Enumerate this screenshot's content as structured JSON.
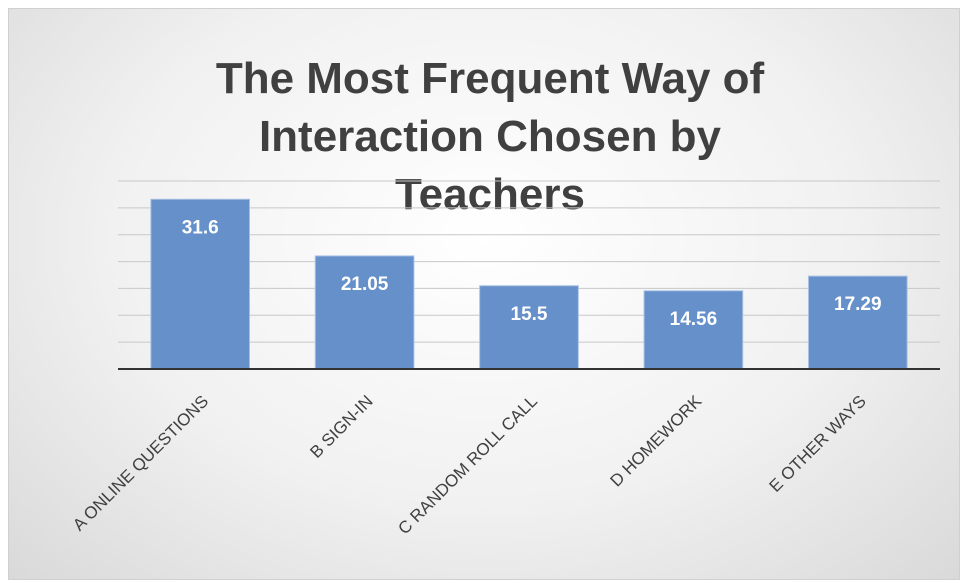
{
  "chart_data": {
    "type": "bar",
    "title": "The Most Frequent Way of Interaction Chosen by Teachers",
    "categories": [
      "A ONLINE QUESTIONS",
      "B SIGN-IN",
      "C RANDOM ROLL CALL",
      "D HOMEWORK",
      "E OTHER WAYS"
    ],
    "values": [
      31.6,
      21.05,
      15.5,
      14.56,
      17.29
    ],
    "color": "#6590c9",
    "ylim": [
      0,
      35
    ],
    "yticks": [
      0,
      5,
      10,
      15,
      20,
      25,
      30,
      35
    ],
    "grid": true
  }
}
